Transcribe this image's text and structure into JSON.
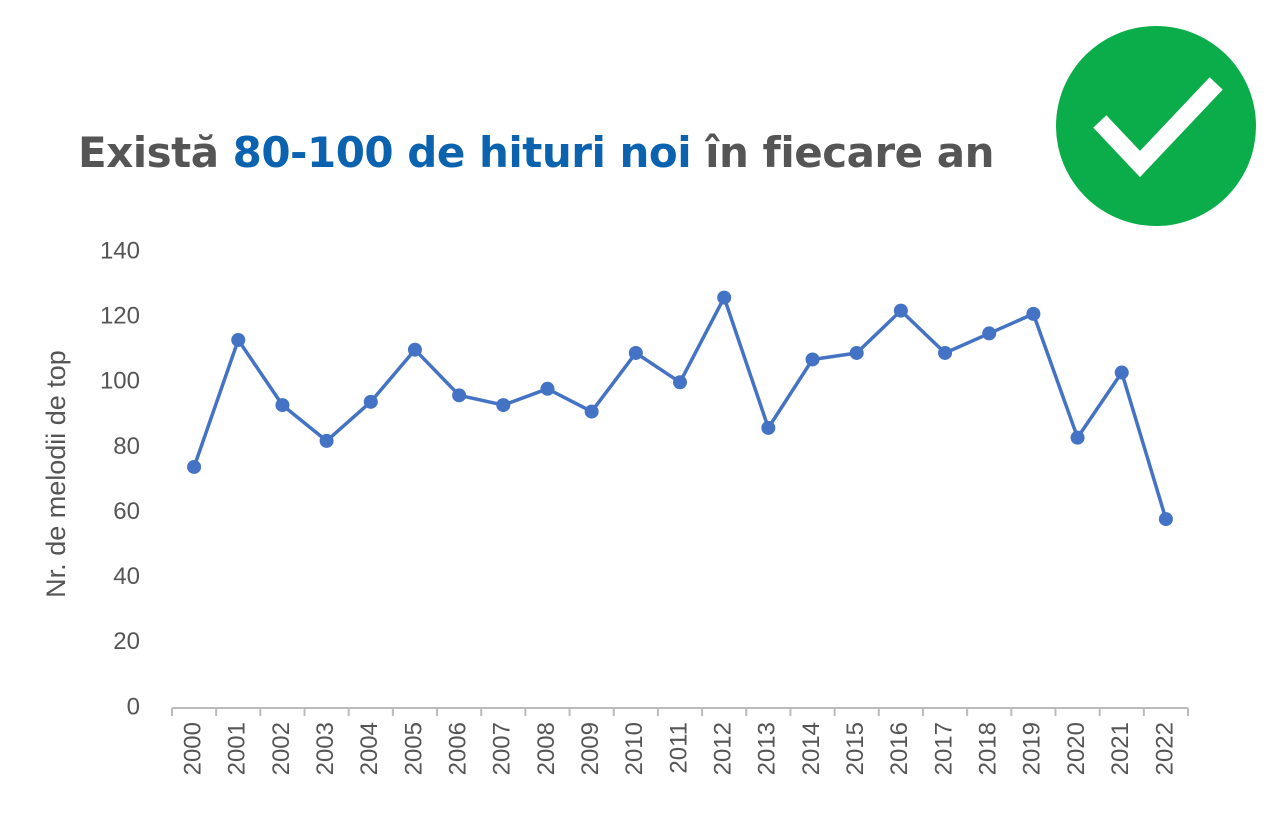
{
  "chart_data": {
    "type": "line",
    "title_parts": [
      "Există",
      "80-100 de hituri noi",
      "în fiecare an"
    ],
    "ylabel": "Nr. de melodii de top",
    "categories": [
      "2000",
      "2001",
      "2002",
      "2003",
      "2004",
      "2005",
      "2006",
      "2007",
      "2008",
      "2009",
      "2010",
      "2011",
      "2012",
      "2013",
      "2014",
      "2015",
      "2016",
      "2017",
      "2018",
      "2019",
      "2020",
      "2021",
      "2022"
    ],
    "series": [
      {
        "color": "#4472c4",
        "values": [
          74,
          113,
          93,
          82,
          94,
          110,
          96,
          93,
          98,
          91,
          109,
          100,
          126,
          86,
          107,
          109,
          122,
          109,
          115,
          121,
          83,
          103,
          58
        ]
      }
    ],
    "ylim": [
      0,
      140
    ],
    "yticks": [
      0,
      20,
      40,
      60,
      80,
      100,
      120,
      140
    ],
    "grid": false
  }
}
